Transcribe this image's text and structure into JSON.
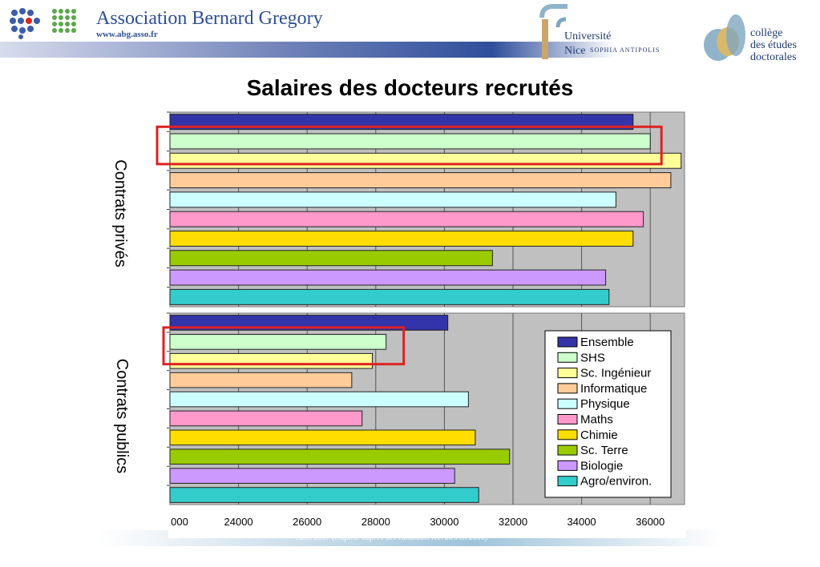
{
  "header": {
    "abg_title": "Association Bernard Gregory",
    "abg_url": "www.abg.asso.fr",
    "unice_line1": "Université",
    "unice_line2": "Nice",
    "unice_sub": "SOPHIA ANTIPOLIS",
    "ced_line1": "collège",
    "ced_line2": "des études",
    "ced_line3": "doctorales"
  },
  "slide": {
    "title": "Salaires des docteurs recrutés",
    "footer": "ABG 2007 (enquête auprès des candidats recrutés en 2006)"
  },
  "chart_data": {
    "type": "bar",
    "orientation": "horizontal",
    "title": "Salaires des docteurs recrutés",
    "x_tick_labels": [
      "000",
      "24000",
      "26000",
      "28000",
      "30000",
      "32000",
      "34000",
      "36000"
    ],
    "xlim": [
      22000,
      37000
    ],
    "grid": true,
    "legend_position": "right",
    "legend": [
      "Ensemble",
      "SHS",
      "Sc. Ingénieur",
      "Informatique",
      "Physique",
      "Maths",
      "Chimie",
      "Sc. Terre",
      "Biologie",
      "Agro/environ."
    ],
    "colors": [
      "#3333aa",
      "#ccffcc",
      "#ffff99",
      "#ffcc99",
      "#ccffff",
      "#ff99cc",
      "#ffdd00",
      "#99cc00",
      "#cc99ff",
      "#33cccc"
    ],
    "groups": [
      {
        "name": "Contrats privés",
        "values": [
          35500,
          36000,
          36900,
          36600,
          35000,
          35800,
          35500,
          31400,
          34700,
          34800
        ],
        "highlight": "SHS"
      },
      {
        "name": "Contrats publics",
        "values": [
          30100,
          28300,
          27900,
          27300,
          30700,
          27600,
          30900,
          31900,
          30300,
          31000
        ],
        "highlight": "SHS"
      }
    ],
    "highlight_color": "#dd2222"
  }
}
